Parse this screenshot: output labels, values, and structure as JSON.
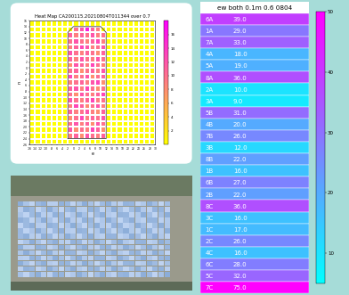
{
  "chart_data": [
    {
      "type": "heatmap",
      "title": "Heat Map CA200115.20210804T011344 over 0.7",
      "x_label": "e",
      "y_label": "n",
      "x_edges": [
        -16,
        -14,
        -12,
        -10,
        -8,
        -6,
        -4,
        -2,
        0,
        2,
        4,
        6,
        8,
        10,
        12,
        14,
        16,
        18,
        20,
        22,
        24,
        26,
        28,
        30
      ],
      "y_edges": [
        -26,
        -24,
        -22,
        -20,
        -18,
        -16,
        -14,
        -12,
        -10,
        -8,
        -6,
        -4,
        -2,
        0,
        2,
        4,
        6,
        8,
        10,
        12,
        14,
        16
      ],
      "xlim": [
        -16,
        30
      ],
      "xticks": [
        -16,
        -14,
        -12,
        -10,
        -8,
        -6,
        -4,
        -2,
        0,
        2,
        4,
        6,
        8,
        10,
        12,
        14,
        16,
        18,
        20,
        22,
        24,
        26,
        28,
        30
      ],
      "ylim": [
        -26,
        16
      ],
      "yticks": [
        -26,
        -24,
        -22,
        -20,
        -18,
        -16,
        -14,
        -12,
        -10,
        -8,
        -6,
        -4,
        -2,
        0,
        2,
        4,
        6,
        8,
        10,
        12,
        14,
        16
      ],
      "cells": [
        [
          0,
          0,
          0,
          0,
          0,
          0,
          0,
          0,
          0,
          0,
          0,
          0,
          0,
          0,
          0,
          0,
          0,
          0,
          0,
          0,
          0,
          0,
          0
        ],
        [
          0,
          0,
          0,
          0,
          0,
          0,
          0,
          9,
          11,
          8,
          12,
          10,
          9,
          11,
          0,
          0,
          0,
          0,
          0,
          0,
          0,
          0,
          0
        ],
        [
          0,
          0,
          0,
          0,
          0,
          0,
          0,
          12,
          8,
          10,
          9,
          13,
          11,
          8,
          0,
          0,
          0,
          0,
          0,
          0,
          0,
          0,
          0
        ],
        [
          0,
          0,
          0,
          0,
          0,
          0,
          0,
          10,
          12,
          9,
          11,
          8,
          12,
          10,
          0,
          0,
          0,
          0,
          0,
          0,
          0,
          0,
          0
        ],
        [
          0,
          0,
          0,
          0,
          0,
          0,
          0,
          8,
          10,
          13,
          9,
          11,
          10,
          12,
          0,
          0,
          0,
          0,
          0,
          0,
          0,
          0,
          0
        ],
        [
          0,
          0,
          0,
          0,
          0,
          0,
          0,
          11,
          9,
          10,
          12,
          9,
          8,
          11,
          0,
          0,
          0,
          0,
          0,
          0,
          0,
          0,
          0
        ],
        [
          0,
          0,
          0,
          0,
          0,
          0,
          0,
          9,
          13,
          11,
          8,
          10,
          12,
          9,
          0,
          0,
          0,
          0,
          0,
          0,
          0,
          0,
          0
        ],
        [
          0,
          0,
          0,
          0,
          0,
          0,
          0,
          12,
          10,
          9,
          11,
          13,
          9,
          10,
          0,
          0,
          0,
          0,
          0,
          0,
          0,
          0,
          0
        ],
        [
          0,
          0,
          0,
          0,
          0,
          0,
          0,
          10,
          8,
          12,
          10,
          9,
          11,
          13,
          0,
          0,
          0,
          0,
          0,
          0,
          0,
          0,
          0
        ],
        [
          0,
          0,
          0,
          0,
          0,
          0,
          0,
          11,
          12,
          9,
          13,
          10,
          8,
          10,
          0,
          0,
          0,
          0,
          0,
          0,
          0,
          0,
          0
        ],
        [
          0,
          0,
          0,
          0,
          0,
          0,
          0,
          9,
          10,
          11,
          9,
          12,
          13,
          8,
          0,
          0,
          0,
          0,
          0,
          0,
          0,
          0,
          0
        ],
        [
          0,
          0,
          0,
          0,
          0,
          0,
          0,
          13,
          9,
          10,
          12,
          8,
          10,
          11,
          0,
          0,
          0,
          0,
          0,
          0,
          0,
          0,
          0
        ],
        [
          0,
          0,
          0,
          0,
          0,
          0,
          0,
          10,
          11,
          8,
          10,
          11,
          9,
          12,
          0,
          0,
          0,
          0,
          0,
          0,
          0,
          0,
          0
        ],
        [
          0,
          0,
          0,
          0,
          0,
          0,
          0,
          8,
          12,
          11,
          9,
          13,
          10,
          9,
          0,
          0,
          0,
          0,
          0,
          0,
          0,
          0,
          0
        ],
        [
          0,
          0,
          0,
          0,
          0,
          0,
          0,
          11,
          9,
          12,
          10,
          9,
          12,
          10,
          0,
          0,
          0,
          0,
          0,
          0,
          0,
          0,
          0
        ],
        [
          0,
          0,
          0,
          0,
          0,
          0,
          0,
          12,
          10,
          9,
          11,
          10,
          8,
          11,
          0,
          0,
          0,
          0,
          0,
          0,
          0,
          0,
          0
        ],
        [
          0,
          0,
          0,
          0,
          0,
          0,
          0,
          9,
          11,
          13,
          12,
          9,
          10,
          12,
          0,
          0,
          0,
          0,
          0,
          0,
          0,
          0,
          0
        ],
        [
          0,
          0,
          0,
          0,
          0,
          0,
          0,
          10,
          12,
          10,
          9,
          11,
          13,
          9,
          0,
          0,
          0,
          0,
          0,
          0,
          0,
          0,
          0
        ],
        [
          0,
          0,
          0,
          0,
          0,
          0,
          0,
          11,
          9,
          11,
          10,
          12,
          9,
          10,
          0,
          0,
          0,
          0,
          0,
          0,
          0,
          0,
          0
        ],
        [
          0,
          0,
          0,
          0,
          0,
          0,
          0,
          0,
          10,
          12,
          16,
          11,
          9,
          0,
          0,
          0,
          0,
          0,
          0,
          0,
          0,
          0,
          0
        ],
        [
          0,
          0,
          0,
          0,
          0,
          0,
          0,
          0,
          0,
          0,
          0,
          0,
          0,
          0,
          0,
          0,
          0,
          0,
          0,
          0,
          0,
          0,
          0
        ]
      ],
      "outline": {
        "x": [
          -2,
          12,
          12,
          10,
          0,
          -2,
          -2
        ],
        "y": [
          -24,
          -24,
          12,
          14,
          14,
          12,
          -24
        ]
      },
      "colorbar_range": [
        0,
        18
      ],
      "colorbar_ticks": [
        2,
        4,
        6,
        8,
        10,
        12,
        14,
        16
      ]
    },
    {
      "type": "table",
      "title": "ew both 0.1m 0.6 0804",
      "categories": [
        "6A",
        "1A",
        "7A",
        "4A",
        "5A",
        "8A",
        "2A",
        "3A",
        "5B",
        "4B",
        "7B",
        "3B",
        "8B",
        "1B",
        "6B",
        "2B",
        "8C",
        "3C",
        "1C",
        "2C",
        "4C",
        "6C",
        "5C",
        "7C"
      ],
      "values": [
        39.0,
        29.0,
        33.0,
        18.0,
        19.0,
        36.0,
        10.0,
        9.0,
        31.0,
        20.0,
        26.0,
        12.0,
        22.0,
        16.0,
        27.0,
        22.0,
        36.0,
        16.0,
        17.0,
        26.0,
        16.0,
        28.0,
        32.0,
        75.0
      ],
      "value_labels": [
        "39.0",
        "29.0",
        "33.0",
        "18.0",
        "19.0",
        "36.0",
        "10.0",
        "9.0",
        "31.0",
        "20.0",
        "26.0",
        "12.0",
        "22.0",
        "16.0",
        "27.0",
        "22.0",
        "36.0",
        "16.0",
        "17.0",
        "26.0",
        "16.0",
        "28.0",
        "32.0",
        "75.0"
      ],
      "colorbar_range": [
        5,
        50
      ],
      "colorbar_ticks": [
        10,
        20,
        30,
        40,
        50
      ]
    }
  ]
}
